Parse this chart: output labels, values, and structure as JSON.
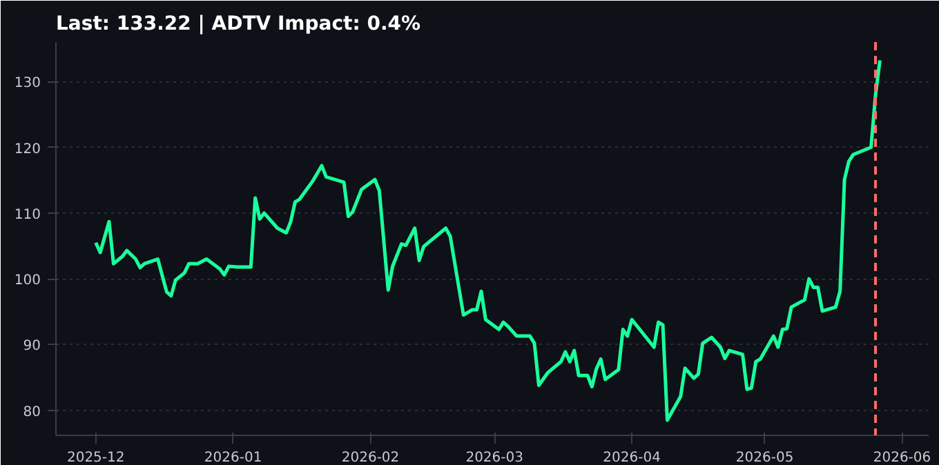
{
  "chart_data": {
    "type": "line",
    "title": "Last: 133.22 | ADTV Impact: 0.4%",
    "x": [
      "2025-12-01",
      "2025-12-02",
      "2025-12-04",
      "2025-12-05",
      "2025-12-07",
      "2025-12-08",
      "2025-12-10",
      "2025-12-11",
      "2025-12-12",
      "2025-12-15",
      "2025-12-17",
      "2025-12-18",
      "2025-12-19",
      "2025-12-21",
      "2025-12-22",
      "2025-12-24",
      "2025-12-26",
      "2025-12-29",
      "2025-12-30",
      "2025-12-31",
      "2026-01-02",
      "2026-01-05",
      "2026-01-06",
      "2026-01-07",
      "2026-01-08",
      "2026-01-11",
      "2026-01-13",
      "2026-01-14",
      "2026-01-15",
      "2026-01-16",
      "2026-01-19",
      "2026-01-21",
      "2026-01-22",
      "2026-01-26",
      "2026-01-27",
      "2026-01-28",
      "2026-01-30",
      "2026-02-02",
      "2026-02-03",
      "2026-02-05",
      "2026-02-06",
      "2026-02-08",
      "2026-02-09",
      "2026-02-11",
      "2026-02-12",
      "2026-02-13",
      "2026-02-18",
      "2026-02-19",
      "2026-02-22",
      "2026-02-24",
      "2026-02-25",
      "2026-02-26",
      "2026-02-27",
      "2026-03-02",
      "2026-03-03",
      "2026-03-04",
      "2026-03-06",
      "2026-03-09",
      "2026-03-10",
      "2026-03-11",
      "2026-03-13",
      "2026-03-16",
      "2026-03-17",
      "2026-03-18",
      "2026-03-19",
      "2026-03-20",
      "2026-03-22",
      "2026-03-23",
      "2026-03-24",
      "2026-03-25",
      "2026-03-26",
      "2026-03-29",
      "2026-03-30",
      "2026-03-31",
      "2026-04-01",
      "2026-04-06",
      "2026-04-07",
      "2026-04-08",
      "2026-04-09",
      "2026-04-12",
      "2026-04-13",
      "2026-04-15",
      "2026-04-16",
      "2026-04-17",
      "2026-04-19",
      "2026-04-21",
      "2026-04-22",
      "2026-04-23",
      "2026-04-26",
      "2026-04-27",
      "2026-04-28",
      "2026-04-29",
      "2026-04-30",
      "2026-05-03",
      "2026-05-04",
      "2026-05-05",
      "2026-05-06",
      "2026-05-07",
      "2026-05-10",
      "2026-05-11",
      "2026-05-12",
      "2026-05-13",
      "2026-05-14",
      "2026-05-17",
      "2026-05-18",
      "2026-05-19",
      "2026-05-20",
      "2026-05-21",
      "2026-05-25",
      "2026-05-26",
      "2026-05-27"
    ],
    "series": [
      {
        "color": "#1aff9c",
        "values": [
          105.5,
          104.0,
          108.7,
          102.3,
          103.4,
          104.3,
          103.0,
          101.7,
          102.3,
          103.0,
          98.0,
          97.4,
          99.8,
          100.9,
          102.3,
          102.3,
          103.0,
          101.5,
          100.6,
          101.9,
          101.8,
          101.8,
          112.3,
          109.1,
          110.0,
          107.7,
          107.0,
          108.7,
          111.7,
          112.1,
          114.9,
          117.2,
          115.5,
          114.7,
          109.5,
          110.2,
          113.6,
          115.1,
          113.4,
          98.3,
          101.9,
          105.3,
          105.1,
          107.7,
          102.8,
          104.9,
          107.7,
          106.5,
          94.5,
          95.3,
          95.3,
          98.1,
          93.8,
          92.3,
          93.4,
          92.8,
          91.3,
          91.3,
          90.2,
          83.8,
          85.7,
          87.4,
          88.9,
          87.4,
          89.1,
          85.3,
          85.3,
          83.6,
          86.3,
          87.8,
          84.7,
          86.2,
          92.3,
          91.3,
          93.8,
          89.6,
          93.4,
          93.0,
          78.5,
          82.1,
          86.4,
          84.9,
          85.5,
          90.2,
          91.1,
          89.6,
          87.9,
          89.1,
          88.5,
          83.2,
          83.4,
          87.4,
          87.8,
          91.3,
          89.6,
          92.3,
          92.4,
          95.7,
          96.8,
          100.0,
          98.7,
          98.7,
          95.1,
          95.7,
          98.1,
          115.1,
          117.9,
          118.9,
          120.0,
          127.9,
          133.22
        ]
      }
    ],
    "xlim": [
      "2025-11-22",
      "2026-06-07"
    ],
    "xticks": [
      "2025-12",
      "2026-01",
      "2026-02",
      "2026-03",
      "2026-04",
      "2026-05",
      "2026-06"
    ],
    "ylim": [
      76.2,
      136.0
    ],
    "yticks": [
      80,
      90,
      100,
      110,
      120,
      130
    ],
    "ref_lines": [
      {
        "axis": "x",
        "value": "2026-05-26",
        "color": "#ff6b6b",
        "line_style": "dashed"
      }
    ],
    "grid": "y",
    "line_style": "solid",
    "marker": "none"
  }
}
